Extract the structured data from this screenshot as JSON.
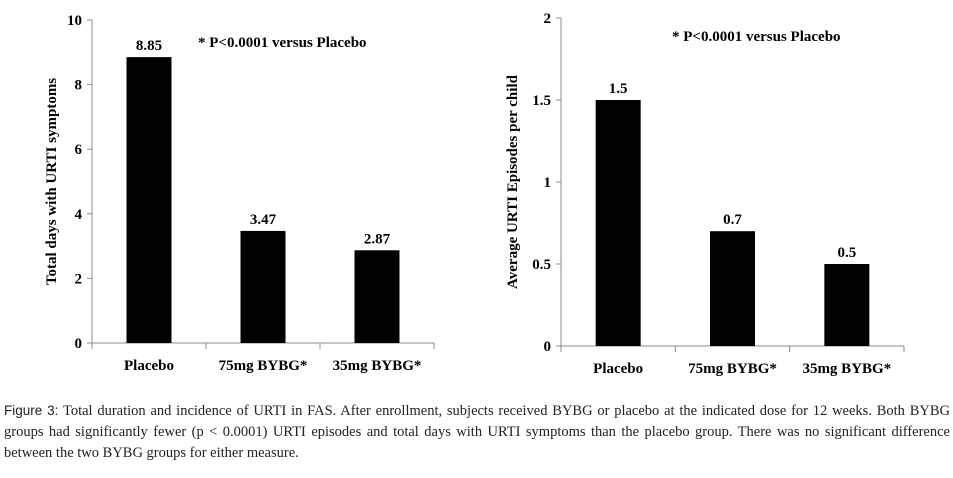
{
  "colors": {
    "bar": "#000000",
    "axis": "#8c8c8c",
    "text": "#000000"
  },
  "chart_data": [
    {
      "type": "bar",
      "categories": [
        "Placebo",
        "75mg BYBG*",
        "35mg BYBG*"
      ],
      "values": [
        8.85,
        3.47,
        2.87
      ],
      "value_labels": [
        "8.85",
        "3.47",
        "2.87"
      ],
      "title": "",
      "annotation": "* P<0.0001 versus Placebo",
      "xlabel": "",
      "ylabel": "Total days with URTI symptoms",
      "ylim": [
        0,
        10
      ],
      "yticks": [
        0,
        2,
        4,
        6,
        8,
        10
      ],
      "ytick_labels": [
        "0",
        "2",
        "4",
        "6",
        "8",
        "10"
      ],
      "grid": false,
      "legend": "none"
    },
    {
      "type": "bar",
      "categories": [
        "Placebo",
        "75mg BYBG*",
        "35mg BYBG*"
      ],
      "values": [
        1.5,
        0.7,
        0.5
      ],
      "value_labels": [
        "1.5",
        "0.7",
        "0.5"
      ],
      "title": "",
      "annotation": "* P<0.0001 versus Placebo",
      "xlabel": "",
      "ylabel": "Average URTI Episodes per child",
      "ylim": [
        0,
        2
      ],
      "yticks": [
        0,
        0.5,
        1,
        1.5,
        2
      ],
      "ytick_labels": [
        "0",
        "0.5",
        "1",
        "1.5",
        "2"
      ],
      "grid": false,
      "legend": "none"
    }
  ],
  "caption": {
    "label": "Figure 3:",
    "text": "Total duration and incidence of URTI in FAS. After enrollment, subjects received BYBG or placebo at the indicated dose for 12 weeks. Both BYBG groups had significantly fewer (p < 0.0001) URTI episodes and total days with URTI symptoms than the placebo group. There was no significant difference between the two BYBG groups for either measure."
  }
}
